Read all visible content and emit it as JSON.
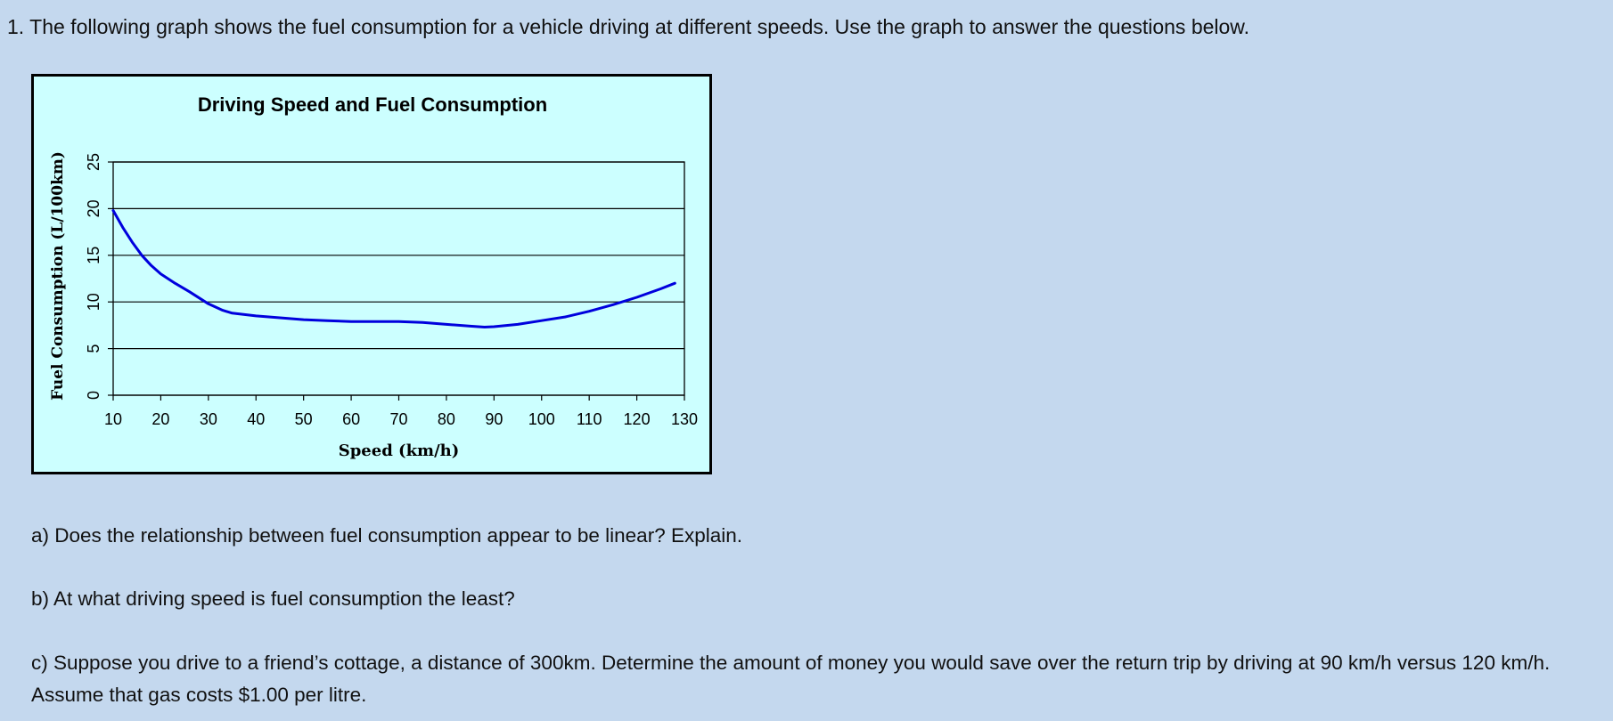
{
  "question": {
    "intro": "1. The following graph shows the fuel consumption for a vehicle driving at different speeds. Use the graph to answer the questions below.",
    "parts": {
      "a": "a) Does the relationship between fuel consumption appear to be linear? Explain.",
      "b": "b) At what driving speed is fuel consumption the least?",
      "c": "c) Suppose you drive to a friend’s cottage, a distance of 300km. Determine the amount of money you would save over the return trip by driving at 90 km/h versus 120 km/h. Assume that gas costs $1.00 per litre."
    }
  },
  "chart_data": {
    "type": "line",
    "title": "Driving Speed and Fuel Consumption",
    "xlabel": "Speed (km/h)",
    "ylabel": "Fuel Consumption (L/100km)",
    "xlim": [
      10,
      130
    ],
    "ylim": [
      0,
      25
    ],
    "x_ticks": [
      10,
      20,
      30,
      40,
      50,
      60,
      70,
      80,
      90,
      100,
      110,
      120,
      130
    ],
    "y_ticks": [
      0,
      5,
      10,
      15,
      20,
      25
    ],
    "grid": "horizontal",
    "legend": "none",
    "series": [
      {
        "color": "#0000dd",
        "points": [
          [
            10,
            19.8
          ],
          [
            12,
            18.0
          ],
          [
            14,
            16.4
          ],
          [
            16,
            15.0
          ],
          [
            18,
            13.9
          ],
          [
            20,
            13.0
          ],
          [
            23,
            12.0
          ],
          [
            26,
            11.1
          ],
          [
            30,
            9.8
          ],
          [
            33,
            9.1
          ],
          [
            35,
            8.8
          ],
          [
            40,
            8.5
          ],
          [
            45,
            8.3
          ],
          [
            50,
            8.1
          ],
          [
            55,
            8.0
          ],
          [
            60,
            7.9
          ],
          [
            65,
            7.9
          ],
          [
            70,
            7.9
          ],
          [
            75,
            7.8
          ],
          [
            80,
            7.6
          ],
          [
            85,
            7.4
          ],
          [
            88,
            7.3
          ],
          [
            90,
            7.35
          ],
          [
            95,
            7.6
          ],
          [
            100,
            8.0
          ],
          [
            105,
            8.4
          ],
          [
            110,
            9.0
          ],
          [
            115,
            9.7
          ],
          [
            120,
            10.5
          ],
          [
            125,
            11.4
          ],
          [
            128,
            12.0
          ]
        ]
      }
    ]
  }
}
